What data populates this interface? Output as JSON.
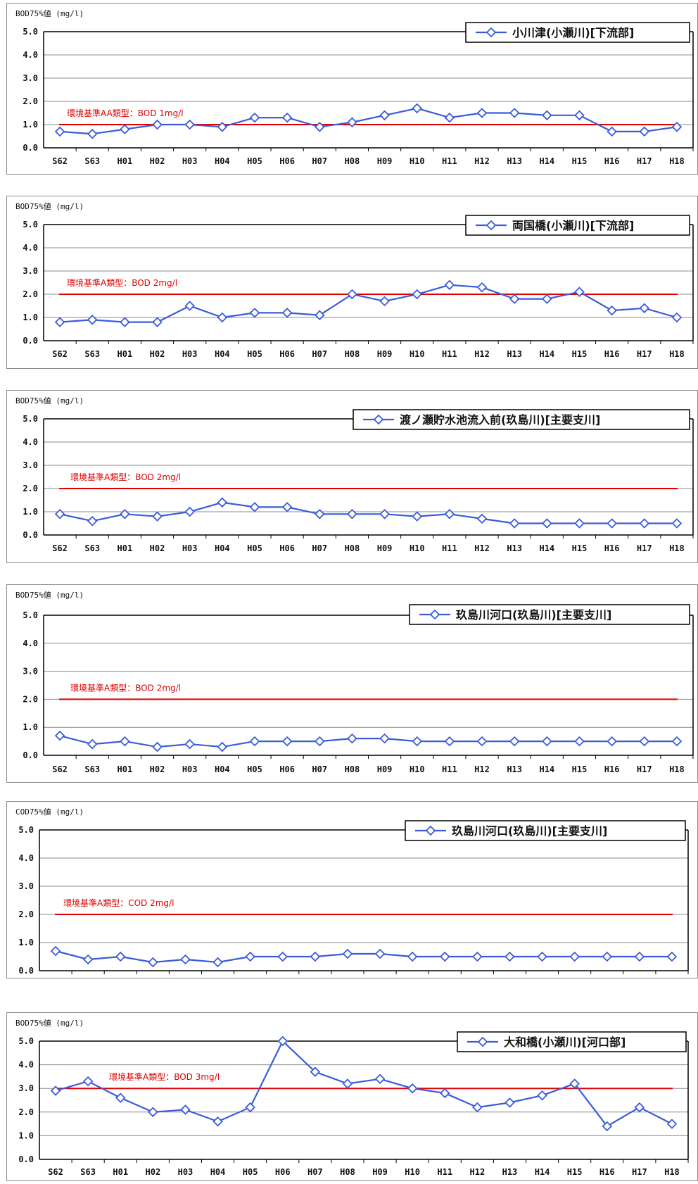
{
  "chart_data": [
    {
      "type": "line",
      "ylabel": "BOD75%値 (mg/l)",
      "ylim": [
        0,
        5
      ],
      "yticks": [
        "5.0",
        "4.0",
        "3.0",
        "2.0",
        "1.0",
        "0.0"
      ],
      "categories": [
        "S62",
        "S63",
        "H01",
        "H02",
        "H03",
        "H04",
        "H05",
        "H06",
        "H07",
        "H08",
        "H09",
        "H10",
        "H11",
        "H12",
        "H13",
        "H14",
        "H15",
        "H16",
        "H17",
        "H18"
      ],
      "series": [
        {
          "name": "小川津(小瀬川)[下流部]",
          "values": [
            0.7,
            0.6,
            0.8,
            1.0,
            1.0,
            0.9,
            1.3,
            1.3,
            0.9,
            1.1,
            1.4,
            1.7,
            1.3,
            1.5,
            1.5,
            1.4,
            1.4,
            0.7,
            0.7,
            0.9
          ]
        }
      ],
      "standard": {
        "label": "環境基準AA類型：BOD 1mg/l",
        "value": 1.0
      },
      "grid": true,
      "legend": "top-right"
    },
    {
      "type": "line",
      "ylabel": "BOD75%値 (mg/l)",
      "ylim": [
        0,
        5
      ],
      "yticks": [
        "5.0",
        "4.0",
        "3.0",
        "2.0",
        "1.0",
        "0.0"
      ],
      "categories": [
        "S62",
        "S63",
        "H01",
        "H02",
        "H03",
        "H04",
        "H05",
        "H06",
        "H07",
        "H08",
        "H09",
        "H10",
        "H11",
        "H12",
        "H13",
        "H14",
        "H15",
        "H16",
        "H17",
        "H18"
      ],
      "series": [
        {
          "name": "両国橋(小瀬川)[下流部]",
          "values": [
            0.8,
            0.9,
            0.8,
            0.8,
            1.5,
            1.0,
            1.2,
            1.2,
            1.1,
            2.0,
            1.7,
            2.0,
            2.4,
            2.3,
            1.8,
            1.8,
            2.1,
            1.3,
            1.4,
            1.0
          ]
        }
      ],
      "standard": {
        "label": "環境基準A類型：BOD 2mg/l",
        "value": 2.0
      },
      "grid": true,
      "legend": "top-right"
    },
    {
      "type": "line",
      "ylabel": "BOD75%値 (mg/l)",
      "ylim": [
        0,
        5
      ],
      "yticks": [
        "5.0",
        "4.0",
        "3.0",
        "2.0",
        "1.0",
        "0.0"
      ],
      "categories": [
        "S62",
        "S63",
        "H01",
        "H02",
        "H03",
        "H04",
        "H05",
        "H06",
        "H07",
        "H08",
        "H09",
        "H10",
        "H11",
        "H12",
        "H13",
        "H14",
        "H15",
        "H16",
        "H17",
        "H18"
      ],
      "series": [
        {
          "name": "渡ノ瀬貯水池流入前(玖島川)[主要支川]",
          "values": [
            0.9,
            0.6,
            0.9,
            0.8,
            1.0,
            1.4,
            1.2,
            1.2,
            0.9,
            0.9,
            0.9,
            0.8,
            0.9,
            0.7,
            0.5,
            0.5,
            0.5,
            0.5,
            0.5,
            0.5
          ]
        }
      ],
      "standard": {
        "label": "環境基準A類型：BOD 2mg/l",
        "value": 2.0
      },
      "grid": true,
      "legend": "top-right"
    },
    {
      "type": "line",
      "ylabel": "BOD75%値 (mg/l)",
      "ylim": [
        0,
        5
      ],
      "yticks": [
        "5.0",
        "4.0",
        "3.0",
        "2.0",
        "1.0",
        "0.0"
      ],
      "categories": [
        "S62",
        "S63",
        "H01",
        "H02",
        "H03",
        "H04",
        "H05",
        "H06",
        "H07",
        "H08",
        "H09",
        "H10",
        "H11",
        "H12",
        "H13",
        "H14",
        "H15",
        "H16",
        "H17",
        "H18"
      ],
      "series": [
        {
          "name": "玖島川河口(玖島川)[主要支川]",
          "values": [
            0.7,
            0.4,
            0.5,
            0.3,
            0.4,
            0.3,
            0.5,
            0.5,
            0.5,
            0.6,
            0.6,
            0.5,
            0.5,
            0.5,
            0.5,
            0.5,
            0.5,
            0.5,
            0.5,
            0.5
          ]
        }
      ],
      "standard": {
        "label": "環境基準A類型：BOD 2mg/l",
        "value": 2.0
      },
      "grid": true,
      "legend": "top-right"
    },
    {
      "type": "line",
      "ylabel": "COD75%値 (mg/l)",
      "ylim": [
        0,
        5
      ],
      "yticks": [
        "5.0",
        "4.0",
        "3.0",
        "2.0",
        "1.0",
        "0.0"
      ],
      "categories": [
        "S62",
        "S63",
        "H01",
        "H02",
        "H03",
        "H04",
        "H05",
        "H06",
        "H07",
        "H08",
        "H09",
        "H10",
        "H11",
        "H12",
        "H13",
        "H14",
        "H15",
        "H16",
        "H17",
        "H18"
      ],
      "series": [
        {
          "name": "玖島川河口(玖島川)[主要支川]",
          "values": [
            0.7,
            0.4,
            0.5,
            0.3,
            0.4,
            0.3,
            0.5,
            0.5,
            0.5,
            0.6,
            0.6,
            0.5,
            0.5,
            0.5,
            0.5,
            0.5,
            0.5,
            0.5,
            0.5,
            0.5
          ]
        }
      ],
      "standard": {
        "label": "環境基準A類型：COD 2mg/l",
        "value": 2.0
      },
      "grid": true,
      "legend": "top-right"
    },
    {
      "type": "line",
      "ylabel": "BOD75%値 (mg/l)",
      "ylim": [
        0,
        5
      ],
      "yticks": [
        "5.0",
        "4.0",
        "3.0",
        "2.0",
        "1.0",
        "0.0"
      ],
      "categories": [
        "S62",
        "S63",
        "H01",
        "H02",
        "H03",
        "H04",
        "H05",
        "H06",
        "H07",
        "H08",
        "H09",
        "H10",
        "H11",
        "H12",
        "H13",
        "H14",
        "H15",
        "H16",
        "H17",
        "H18"
      ],
      "series": [
        {
          "name": "大和橋(小瀬川)[河口部]",
          "values": [
            2.9,
            3.3,
            2.6,
            2.0,
            2.1,
            1.6,
            2.2,
            5.0,
            3.7,
            3.2,
            3.4,
            3.0,
            2.8,
            2.2,
            2.4,
            2.7,
            3.2,
            1.4,
            2.2,
            1.5
          ]
        }
      ],
      "standard": {
        "label": "環境基準A類型：BOD 3mg/l",
        "value": 3.0
      },
      "grid": true,
      "legend": "top-right"
    }
  ],
  "colors": {
    "series": "#3b5bdb",
    "standard": "#e00000",
    "grid": "#8c8c8c",
    "axis": "#000000"
  }
}
